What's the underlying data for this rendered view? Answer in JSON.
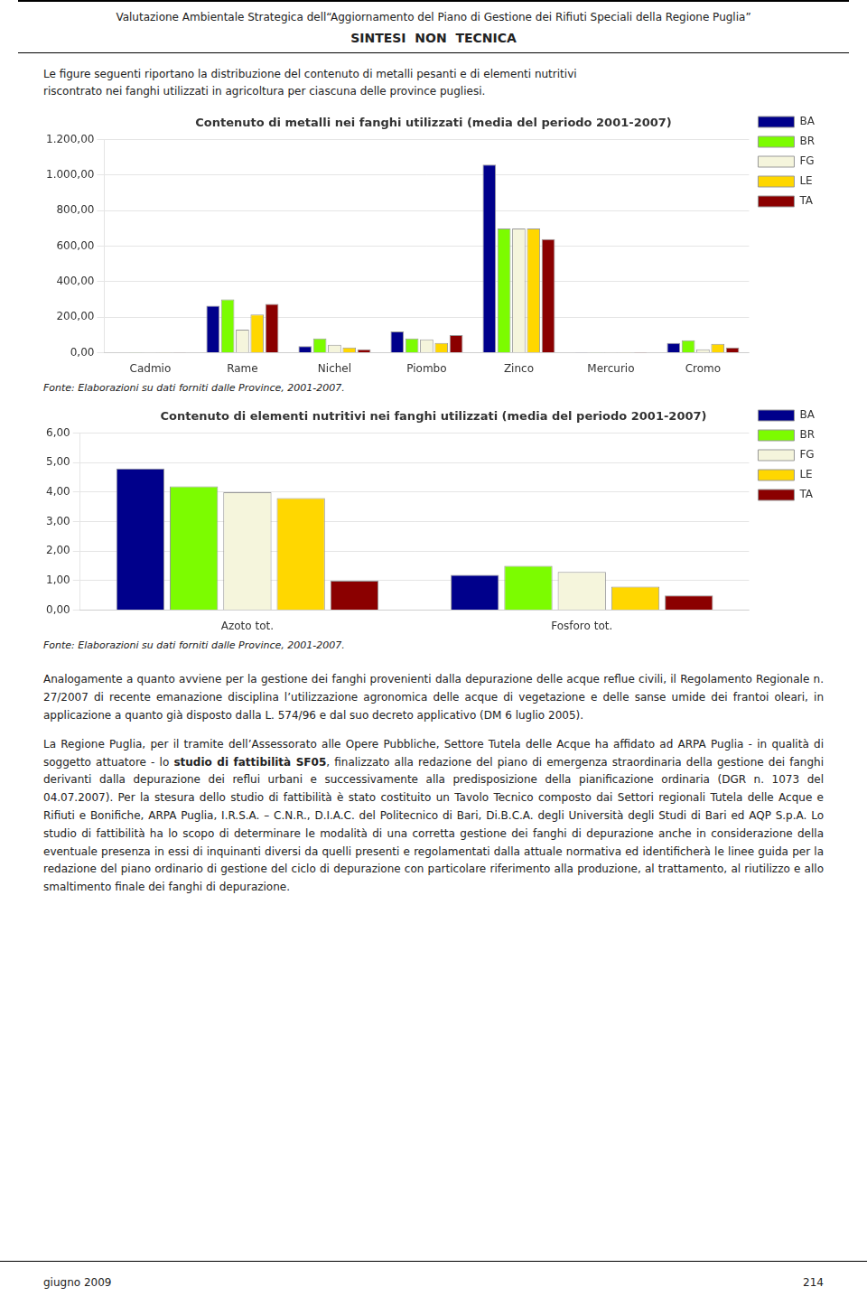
{
  "header_title": "Valutazione Ambientale Strategica dell“Aggiornamento del Piano di Gestione dei Rifiuti Speciali della Regione Puglia”",
  "header_subtitle": "SINTESI  NON  TECNICA",
  "intro": [
    "Le figure seguenti riportano la distribuzione del contenuto di metalli pesanti e di elementi nutritivi",
    "riscontrato nei fanghi utilizzati in agricoltura per ciascuna delle province pugliesi."
  ],
  "chart_data": [
    {
      "type": "bar",
      "title": "Contenuto di metalli nei fanghi utilizzati (media del periodo 2001-2007)",
      "categories": [
        "Cadmio",
        "Rame",
        "Nichel",
        "Piombo",
        "Zinco",
        "Mercurio",
        "Cromo"
      ],
      "series": [
        {
          "name": "BA",
          "color": "#00008B",
          "values": [
            2.5,
            265,
            38,
            120,
            1060,
            1.5,
            55
          ]
        },
        {
          "name": "BR",
          "color": "#7CFC00",
          "values": [
            2.0,
            300,
            80,
            80,
            700,
            1.2,
            70
          ]
        },
        {
          "name": "FG",
          "color": "#F5F5DC",
          "values": [
            1.5,
            130,
            45,
            75,
            700,
            1.0,
            20
          ]
        },
        {
          "name": "LE",
          "color": "#FFD700",
          "values": [
            2.2,
            215,
            30,
            55,
            700,
            1.2,
            50
          ]
        },
        {
          "name": "TA",
          "color": "#8B0000",
          "values": [
            1.8,
            275,
            20,
            100,
            640,
            1.0,
            30
          ]
        }
      ],
      "ylim": [
        0,
        1200
      ],
      "yticks": [
        {
          "value": 0,
          "label": "0,00"
        },
        {
          "value": 200,
          "label": "200,00"
        },
        {
          "value": 400,
          "label": "400,00"
        },
        {
          "value": 600,
          "label": "600,00"
        },
        {
          "value": 800,
          "label": "800,00"
        },
        {
          "value": 1000,
          "label": "1.000,00"
        },
        {
          "value": 1200,
          "label": "1.200,00"
        }
      ],
      "grid": true,
      "legend": "right",
      "source": "Fonte: Elaborazioni su dati forniti dalle Province, 2001-2007."
    },
    {
      "type": "bar",
      "title": "Contenuto di elementi nutritivi nei fanghi utilizzati (media del periodo 2001-2007)",
      "categories": [
        "Azoto tot.",
        "Fosforo tot."
      ],
      "series": [
        {
          "name": "BA",
          "color": "#00008B",
          "values": [
            4.8,
            1.2
          ]
        },
        {
          "name": "BR",
          "color": "#7CFC00",
          "values": [
            4.2,
            1.5
          ]
        },
        {
          "name": "FG",
          "color": "#F5F5DC",
          "values": [
            4.0,
            1.3
          ]
        },
        {
          "name": "LE",
          "color": "#FFD700",
          "values": [
            3.8,
            0.8
          ]
        },
        {
          "name": "TA",
          "color": "#8B0000",
          "values": [
            1.0,
            0.5
          ]
        }
      ],
      "ylim": [
        0,
        6
      ],
      "yticks": [
        {
          "value": 0,
          "label": "0,00"
        },
        {
          "value": 1,
          "label": "1,00"
        },
        {
          "value": 2,
          "label": "2,00"
        },
        {
          "value": 3,
          "label": "3,00"
        },
        {
          "value": 4,
          "label": "4,00"
        },
        {
          "value": 5,
          "label": "5,00"
        },
        {
          "value": 6,
          "label": "6,00"
        }
      ],
      "grid": true,
      "legend": "right",
      "source": "Fonte: Elaborazioni su dati forniti dalle Province, 2001-2007."
    }
  ],
  "body_paragraphs": [
    "Analogamente a quanto avviene per la gestione dei fanghi provenienti dalla depurazione delle acque reflue civili, il Regolamento Regionale n. 27/2007 di recente emanazione disciplina l’utilizzazione agronomica delle acque di vegetazione e delle sanse umide dei frantoi oleari, in applicazione a quanto già disposto dalla L. 574/96 e dal suo decreto applicativo (DM 6 luglio 2005).",
    "La Regione Puglia, per il tramite dell’Assessorato alle Opere Pubbliche, Settore Tutela delle Acque ha affidato ad ARPA Puglia - in qualità di soggetto attuatore - lo studio di fattibilità SF05, finalizzato alla redazione del piano di emergenza straordinaria della gestione dei fanghi derivanti dalla depurazione dei reflui urbani e successivamente alla predisposizione della pianificazione ordinaria (DGR n. 1073 del 04.07.2007). Per la stesura dello studio di fattibilità è stato costituito un Tavolo Tecnico composto dai Settori regionali Tutela delle Acque e Rifiuti e Bonifiche, ARPA Puglia, I.R.S.A. – C.N.R., D.I.A.C. del Politecnico di Bari, Di.B.C.A. degli Università degli Studi di Bari ed AQP S.p.A. Lo studio di fattibilità ha lo scopo di determinare le modalità di una corretta gestione dei fanghi di depurazione anche in considerazione della eventuale presenza in essi di inquinanti diversi da quelli presenti e regolamentati dalla attuale normativa ed identificherà le linee guida per la redazione del piano ordinario di gestione del ciclo di depurazione con particolare riferimento alla produzione, al trattamento, al riutilizzo e allo smaltimento finale dei fanghi di depurazione."
  ],
  "body_bold": "studio di fattibilità SF05",
  "footer_left": "giugno 2009",
  "footer_right": "214"
}
